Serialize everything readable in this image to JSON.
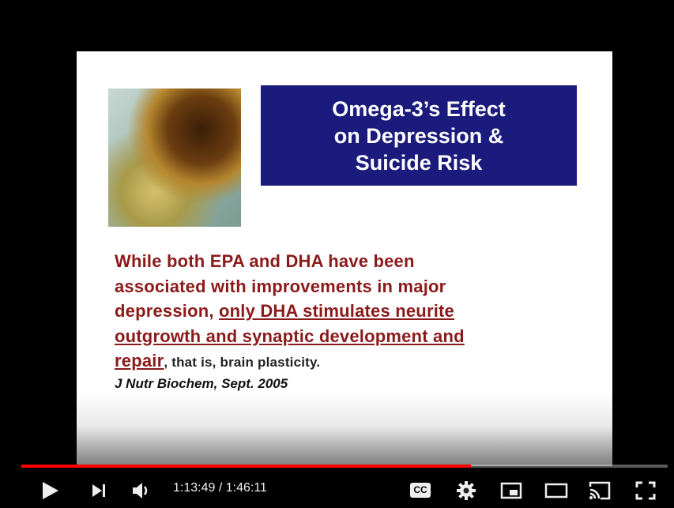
{
  "slide": {
    "title": [
      "Omega-3’s Effect",
      "on Depression &",
      "Suicide Risk"
    ],
    "body": [
      "While both EPA and DHA have been",
      "associated with improvements in major",
      "depression,",
      "only DHA stimulates neurite",
      "outgrowth and synaptic development and",
      "repair",
      ", that is, brain plasticity."
    ],
    "citation": "J Nutr Biochem, Sept. 2005"
  },
  "player": {
    "time": "1:13:49 / 1:46:11",
    "cc": "CC"
  }
}
